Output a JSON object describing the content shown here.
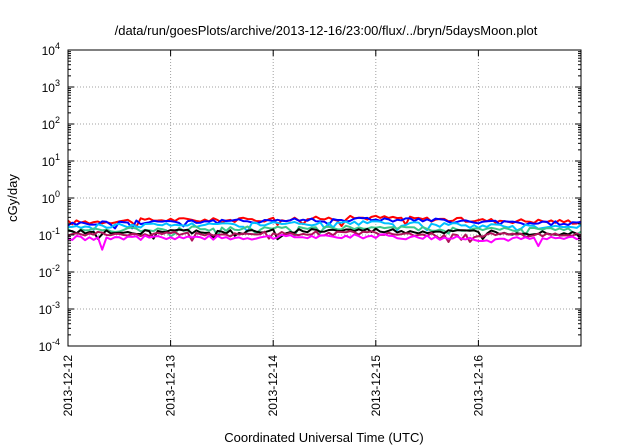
{
  "chart_data": {
    "type": "line",
    "title": "/data/run/goesPlots/archive/2013-12-16/23:00/flux/../bryn/5daysMoon.plot",
    "xlabel": "Coordinated Universal Time (UTC)",
    "ylabel": "cGy/day",
    "yscale": "log",
    "ylim": [
      0.0001,
      10000
    ],
    "y_ticks": [
      {
        "base": "10",
        "exp": "-4",
        "value": 0.0001
      },
      {
        "base": "10",
        "exp": "-3",
        "value": 0.001
      },
      {
        "base": "10",
        "exp": "-2",
        "value": 0.01
      },
      {
        "base": "10",
        "exp": "-1",
        "value": 0.1
      },
      {
        "base": "10",
        "exp": "0",
        "value": 1
      },
      {
        "base": "10",
        "exp": "1",
        "value": 10
      },
      {
        "base": "10",
        "exp": "2",
        "value": 100
      },
      {
        "base": "10",
        "exp": "3",
        "value": 1000
      },
      {
        "base": "10",
        "exp": "4",
        "value": 10000
      }
    ],
    "xlim": [
      "2013-12-12",
      "2013-12-17"
    ],
    "x_ticks": [
      "2013-12-12",
      "2013-12-13",
      "2013-12-14",
      "2013-12-15",
      "2013-12-16"
    ],
    "grid": true,
    "legend": "none",
    "series": [
      {
        "color": "#ff0000",
        "x": [
          "2013-12-12",
          "2013-12-12T12:00",
          "2013-12-13",
          "2013-12-13T12:00",
          "2013-12-14",
          "2013-12-14T12:00",
          "2013-12-15",
          "2013-12-15T12:00",
          "2013-12-16",
          "2013-12-16T12:00",
          "2013-12-17"
        ],
        "y": [
          0.22,
          0.24,
          0.26,
          0.25,
          0.27,
          0.28,
          0.3,
          0.27,
          0.25,
          0.24,
          0.23
        ]
      },
      {
        "color": "#0000ff",
        "x": [
          "2013-12-12",
          "2013-12-12T12:00",
          "2013-12-13",
          "2013-12-13T12:00",
          "2013-12-14",
          "2013-12-14T12:00",
          "2013-12-15",
          "2013-12-15T12:00",
          "2013-12-16",
          "2013-12-16T12:00",
          "2013-12-17"
        ],
        "y": [
          0.2,
          0.22,
          0.24,
          0.23,
          0.25,
          0.26,
          0.27,
          0.25,
          0.22,
          0.21,
          0.21
        ]
      },
      {
        "color": "#00bfff",
        "x": [
          "2013-12-12",
          "2013-12-12T12:00",
          "2013-12-13",
          "2013-12-13T12:00",
          "2013-12-14",
          "2013-12-14T12:00",
          "2013-12-15",
          "2013-12-15T12:00",
          "2013-12-16",
          "2013-12-16T12:00",
          "2013-12-17"
        ],
        "y": [
          0.17,
          0.18,
          0.19,
          0.19,
          0.2,
          0.2,
          0.21,
          0.19,
          0.18,
          0.17,
          0.17
        ]
      },
      {
        "color": "#3cc88c",
        "x": [
          "2013-12-12",
          "2013-12-12T12:00",
          "2013-12-13",
          "2013-12-13T12:00",
          "2013-12-14",
          "2013-12-14T12:00",
          "2013-12-15",
          "2013-12-15T12:00",
          "2013-12-16",
          "2013-12-16T12:00",
          "2013-12-17"
        ],
        "y": [
          0.14,
          0.14,
          0.15,
          0.15,
          0.15,
          0.16,
          0.16,
          0.15,
          0.14,
          0.14,
          0.14
        ]
      },
      {
        "color": "#000000",
        "x": [
          "2013-12-12",
          "2013-12-12T12:00",
          "2013-12-13",
          "2013-12-13T12:00",
          "2013-12-14",
          "2013-12-14T12:00",
          "2013-12-15",
          "2013-12-15T12:00",
          "2013-12-16",
          "2013-12-16T12:00",
          "2013-12-17"
        ],
        "y": [
          0.12,
          0.12,
          0.125,
          0.12,
          0.125,
          0.13,
          0.13,
          0.12,
          0.12,
          0.115,
          0.115
        ]
      },
      {
        "color": "#b0145a",
        "x": [
          "2013-12-12",
          "2013-12-12T12:00",
          "2013-12-13",
          "2013-12-13T12:00",
          "2013-12-14",
          "2013-12-14T12:00",
          "2013-12-15",
          "2013-12-15T12:00",
          "2013-12-16",
          "2013-12-16T12:00",
          "2013-12-17"
        ],
        "y": [
          0.11,
          0.105,
          0.11,
          0.105,
          0.11,
          0.11,
          0.115,
          0.105,
          0.1,
          0.1,
          0.1
        ]
      },
      {
        "color": "#ff00ff",
        "x": [
          "2013-12-12",
          "2013-12-12T12:00",
          "2013-12-13",
          "2013-12-13T12:00",
          "2013-12-14",
          "2013-12-14T12:00",
          "2013-12-15",
          "2013-12-15T12:00",
          "2013-12-16",
          "2013-12-16T12:00",
          "2013-12-17"
        ],
        "y": [
          0.085,
          0.08,
          0.09,
          0.085,
          0.09,
          0.09,
          0.095,
          0.085,
          0.08,
          0.08,
          0.08
        ]
      }
    ],
    "notable_dips": [
      {
        "series": 6,
        "x": "2013-12-12T08:00",
        "y": 0.04
      },
      {
        "series": 6,
        "x": "2013-12-16T14:00",
        "y": 0.05
      }
    ]
  }
}
